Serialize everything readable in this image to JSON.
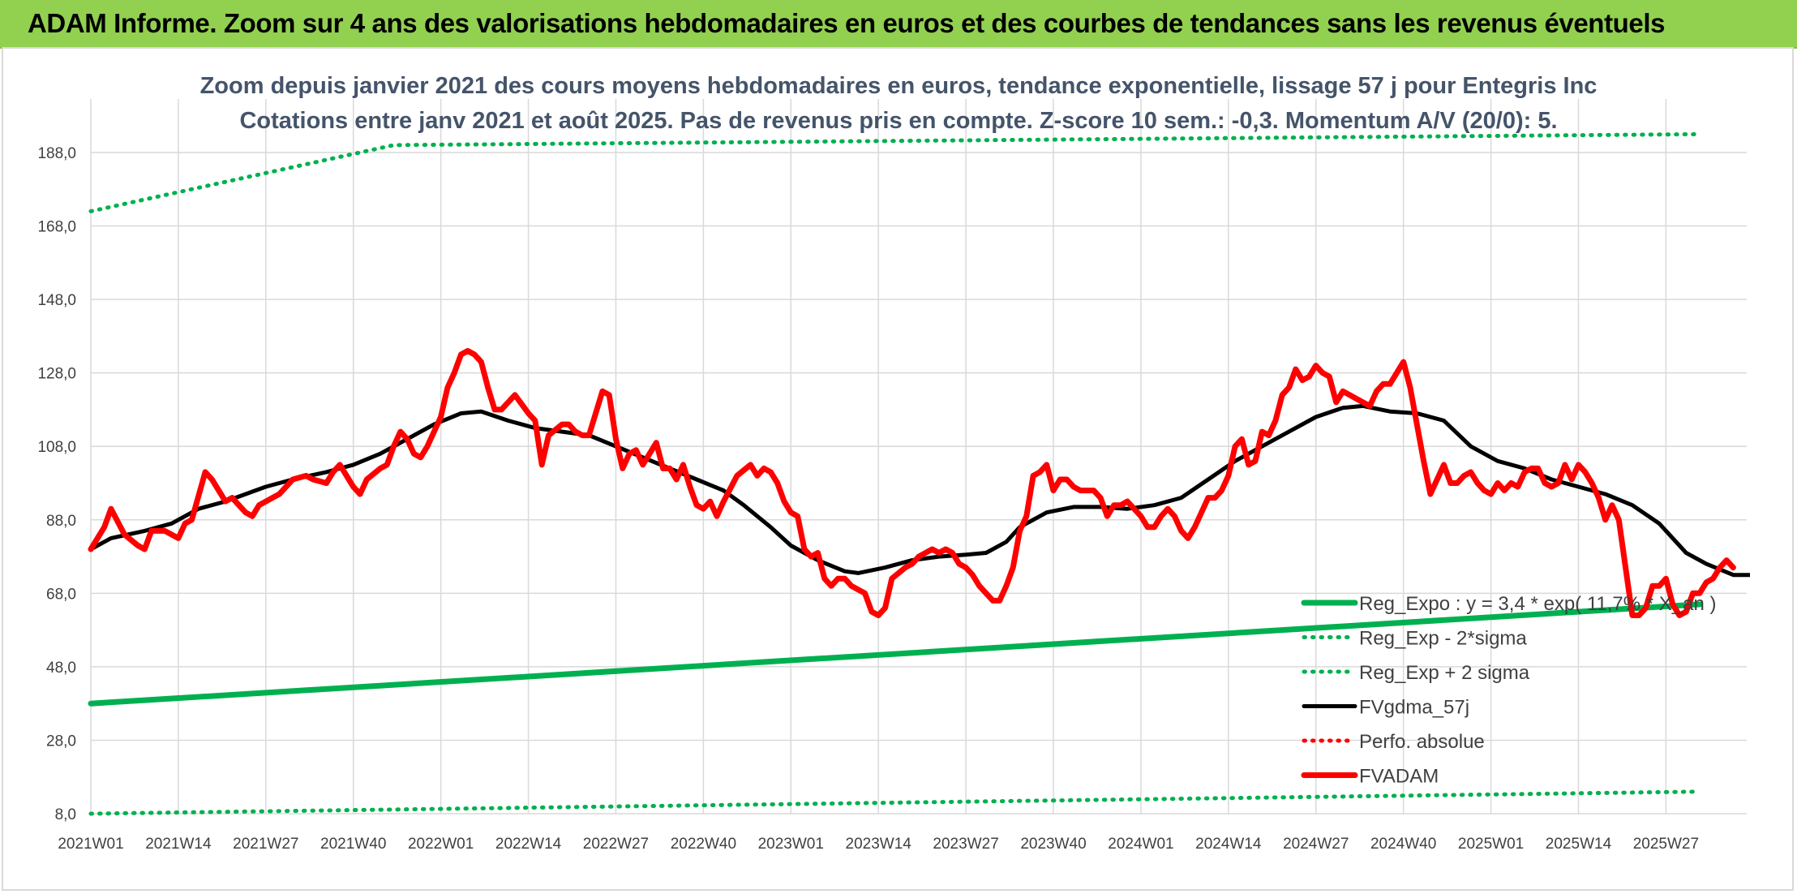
{
  "header": {
    "title": "ADAM Informe. Zoom sur 4 ans des valorisations hebdomadaires en euros et des courbes de tendances sans les revenus éventuels"
  },
  "chart": {
    "subtitle_line1": "Zoom depuis janvier 2021 des cours moyens hebdomadaires en euros, tendance exponentielle, lissage 57 j pour Entegris Inc",
    "subtitle_line2": "Cotations entre janv 2021 et août 2025. Pas de revenus pris en compte. Z-score 10 sem.: -0,3. Momentum A/V (20/0): 5."
  },
  "colors": {
    "reg_expo": "#00b050",
    "fvgdma": "#000000",
    "fvadam": "#ff0000",
    "perfo": "#ff0000",
    "grid": "#d9d9d9",
    "subtitle": "#44546a",
    "banner": "#92d050"
  },
  "chart_data": {
    "type": "line",
    "ylim": [
      8,
      188
    ],
    "yticks": [
      "188,0",
      "168,0",
      "148,0",
      "128,0",
      "108,0",
      "88,0",
      "68,0",
      "48,0",
      "28,0",
      "8,0"
    ],
    "xticks": [
      "2021W01",
      "2021W14",
      "2021W27",
      "2021W40",
      "2022W01",
      "2022W14",
      "2022W27",
      "2022W40",
      "2023W01",
      "2023W14",
      "2023W27",
      "2023W40",
      "2024W01",
      "2024W14",
      "2024W27",
      "2024W40",
      "2025W01",
      "2025W14",
      "2025W27"
    ],
    "grid": true,
    "legend_position": "bottom-right",
    "series": [
      {
        "name": "Reg_Expo : y = 3,4 * exp( 11,7% * X_an )",
        "style": "solid-thick",
        "color": "#00b050",
        "points": [
          [
            0,
            38.0
          ],
          [
            239,
            65.0
          ]
        ]
      },
      {
        "name": "Reg_Exp - 2*sigma",
        "style": "dotted",
        "color": "#00b050",
        "points": [
          [
            0,
            8.0
          ],
          [
            239,
            14.0
          ]
        ]
      },
      {
        "name": "Reg_Exp + 2 sigma",
        "style": "dotted",
        "color": "#00b050",
        "points": [
          [
            0,
            172.0
          ],
          [
            45,
            190.0
          ],
          [
            239,
            193.0
          ]
        ]
      },
      {
        "name": "FVgdma_57j",
        "style": "solid",
        "color": "#000000",
        "points": [
          [
            0,
            80
          ],
          [
            3,
            83
          ],
          [
            8,
            85
          ],
          [
            12,
            87
          ],
          [
            16,
            91
          ],
          [
            20,
            93
          ],
          [
            26,
            97
          ],
          [
            30,
            99
          ],
          [
            35,
            101
          ],
          [
            39,
            103
          ],
          [
            43,
            106
          ],
          [
            47,
            110
          ],
          [
            51,
            114
          ],
          [
            55,
            117
          ],
          [
            58,
            117.5
          ],
          [
            62,
            115
          ],
          [
            66,
            113
          ],
          [
            70,
            112
          ],
          [
            74,
            111
          ],
          [
            78,
            108
          ],
          [
            82,
            105
          ],
          [
            86,
            102
          ],
          [
            90,
            99
          ],
          [
            94,
            96
          ],
          [
            97,
            92
          ],
          [
            101,
            86
          ],
          [
            104,
            81
          ],
          [
            108,
            77
          ],
          [
            112,
            74
          ],
          [
            114,
            73.5
          ],
          [
            118,
            75
          ],
          [
            122,
            77
          ],
          [
            126,
            78
          ],
          [
            130,
            78.5
          ],
          [
            133,
            79
          ],
          [
            136,
            82
          ],
          [
            138,
            86
          ],
          [
            142,
            90
          ],
          [
            146,
            91.5
          ],
          [
            150,
            91.5
          ],
          [
            154,
            91
          ],
          [
            158,
            92
          ],
          [
            162,
            94
          ],
          [
            166,
            99
          ],
          [
            170,
            104
          ],
          [
            174,
            108
          ],
          [
            178,
            112
          ],
          [
            182,
            116
          ],
          [
            186,
            118.5
          ],
          [
            189,
            119
          ],
          [
            193,
            117.5
          ],
          [
            197,
            117
          ],
          [
            201,
            115
          ],
          [
            205,
            108
          ],
          [
            209,
            104
          ],
          [
            213,
            102
          ],
          [
            217,
            99
          ],
          [
            221,
            97
          ],
          [
            225,
            95
          ],
          [
            229,
            92
          ],
          [
            233,
            87
          ],
          [
            237,
            79
          ],
          [
            240,
            76
          ],
          [
            244,
            73
          ],
          [
            248,
            73
          ],
          [
            252,
            74
          ],
          [
            255,
            75
          ]
        ]
      },
      {
        "name": "Perfo. absolue",
        "style": "dotted",
        "color": "#ff0000",
        "points": []
      },
      {
        "name": "FVADAM",
        "style": "solid-thick",
        "color": "#ff0000",
        "points": [
          [
            0,
            80
          ],
          [
            2,
            86
          ],
          [
            3,
            91
          ],
          [
            5,
            84
          ],
          [
            7,
            81
          ],
          [
            8,
            80
          ],
          [
            9,
            85
          ],
          [
            11,
            85
          ],
          [
            13,
            83
          ],
          [
            14,
            87
          ],
          [
            15,
            88
          ],
          [
            17,
            101
          ],
          [
            18,
            99
          ],
          [
            20,
            93
          ],
          [
            21,
            94
          ],
          [
            23,
            90
          ],
          [
            24,
            89
          ],
          [
            25,
            92
          ],
          [
            27,
            94
          ],
          [
            28,
            95
          ],
          [
            30,
            99
          ],
          [
            32,
            100
          ],
          [
            33,
            99
          ],
          [
            35,
            98
          ],
          [
            36,
            101
          ],
          [
            37,
            103
          ],
          [
            39,
            97
          ],
          [
            40,
            95
          ],
          [
            41,
            99
          ],
          [
            43,
            102
          ],
          [
            44,
            103
          ],
          [
            45,
            108
          ],
          [
            46,
            112
          ],
          [
            47,
            110
          ],
          [
            48,
            106
          ],
          [
            49,
            105
          ],
          [
            50,
            108
          ],
          [
            52,
            116
          ],
          [
            53,
            124
          ],
          [
            54,
            128
          ],
          [
            55,
            133
          ],
          [
            56,
            134
          ],
          [
            57,
            133
          ],
          [
            58,
            131
          ],
          [
            59,
            124
          ],
          [
            60,
            118
          ],
          [
            61,
            118
          ],
          [
            62,
            120
          ],
          [
            63,
            122
          ],
          [
            65,
            117
          ],
          [
            66,
            115
          ],
          [
            67,
            103
          ],
          [
            68,
            111
          ],
          [
            70,
            114
          ],
          [
            71,
            114
          ],
          [
            72,
            112
          ],
          [
            73,
            111
          ],
          [
            74,
            111
          ],
          [
            75,
            117
          ],
          [
            76,
            123
          ],
          [
            77,
            122
          ],
          [
            78,
            110
          ],
          [
            79,
            102
          ],
          [
            80,
            106
          ],
          [
            81,
            107
          ],
          [
            82,
            103
          ],
          [
            84,
            109
          ],
          [
            85,
            102
          ],
          [
            86,
            102
          ],
          [
            87,
            99
          ],
          [
            88,
            103
          ],
          [
            89,
            97
          ],
          [
            90,
            92
          ],
          [
            91,
            91
          ],
          [
            92,
            93
          ],
          [
            93,
            89
          ],
          [
            94,
            93
          ],
          [
            96,
            100
          ],
          [
            98,
            103
          ],
          [
            99,
            100
          ],
          [
            100,
            102
          ],
          [
            101,
            101
          ],
          [
            102,
            98
          ],
          [
            103,
            93
          ],
          [
            104,
            90
          ],
          [
            105,
            89
          ],
          [
            106,
            80
          ],
          [
            107,
            78
          ],
          [
            108,
            79
          ],
          [
            109,
            72
          ],
          [
            110,
            70
          ],
          [
            111,
            72
          ],
          [
            112,
            72
          ],
          [
            113,
            70
          ],
          [
            114,
            69
          ],
          [
            115,
            68
          ],
          [
            116,
            63
          ],
          [
            117,
            62
          ],
          [
            118,
            64
          ],
          [
            119,
            72
          ],
          [
            121,
            75
          ],
          [
            122,
            76
          ],
          [
            123,
            78
          ],
          [
            124,
            79
          ],
          [
            125,
            80
          ],
          [
            126,
            79
          ],
          [
            127,
            80
          ],
          [
            128,
            79
          ],
          [
            129,
            76
          ],
          [
            130,
            75
          ],
          [
            131,
            73
          ],
          [
            132,
            70
          ],
          [
            133,
            68
          ],
          [
            134,
            66
          ],
          [
            135,
            66
          ],
          [
            136,
            70
          ],
          [
            137,
            75
          ],
          [
            138,
            85
          ],
          [
            139,
            89
          ],
          [
            140,
            100
          ],
          [
            141,
            101
          ],
          [
            142,
            103
          ],
          [
            143,
            96
          ],
          [
            144,
            99
          ],
          [
            145,
            99
          ],
          [
            146,
            97
          ],
          [
            147,
            96
          ],
          [
            148,
            96
          ],
          [
            149,
            96
          ],
          [
            150,
            94
          ],
          [
            151,
            89
          ],
          [
            152,
            92
          ],
          [
            153,
            92
          ],
          [
            154,
            93
          ],
          [
            155,
            91
          ],
          [
            156,
            89
          ],
          [
            157,
            86
          ],
          [
            158,
            86
          ],
          [
            159,
            89
          ],
          [
            160,
            91
          ],
          [
            161,
            89
          ],
          [
            162,
            85
          ],
          [
            163,
            83
          ],
          [
            164,
            86
          ],
          [
            165,
            90
          ],
          [
            166,
            94
          ],
          [
            167,
            94
          ],
          [
            168,
            96
          ],
          [
            169,
            100
          ],
          [
            170,
            108
          ],
          [
            171,
            110
          ],
          [
            172,
            103
          ],
          [
            173,
            104
          ],
          [
            174,
            112
          ],
          [
            175,
            111
          ],
          [
            176,
            115
          ],
          [
            177,
            122
          ],
          [
            178,
            124
          ],
          [
            179,
            129
          ],
          [
            180,
            126
          ],
          [
            181,
            127
          ],
          [
            182,
            130
          ],
          [
            183,
            128
          ],
          [
            184,
            127
          ],
          [
            185,
            120
          ],
          [
            186,
            123
          ],
          [
            187,
            122
          ],
          [
            188,
            121
          ],
          [
            189,
            120
          ],
          [
            190,
            119
          ],
          [
            191,
            123
          ],
          [
            192,
            125
          ],
          [
            193,
            125
          ],
          [
            194,
            128
          ],
          [
            195,
            131
          ],
          [
            196,
            124
          ],
          [
            197,
            114
          ],
          [
            198,
            104
          ],
          [
            199,
            95
          ],
          [
            200,
            99
          ],
          [
            201,
            103
          ],
          [
            202,
            98
          ],
          [
            203,
            98
          ],
          [
            204,
            100
          ],
          [
            205,
            101
          ],
          [
            206,
            98
          ],
          [
            207,
            96
          ],
          [
            208,
            95
          ],
          [
            209,
            98
          ],
          [
            210,
            96
          ],
          [
            211,
            98
          ],
          [
            212,
            97
          ],
          [
            213,
            101
          ],
          [
            214,
            102
          ],
          [
            215,
            102
          ],
          [
            216,
            98
          ],
          [
            217,
            97
          ],
          [
            218,
            98
          ],
          [
            219,
            103
          ],
          [
            220,
            99
          ],
          [
            221,
            103
          ],
          [
            222,
            101
          ],
          [
            223,
            98
          ],
          [
            224,
            94
          ],
          [
            225,
            88
          ],
          [
            226,
            92
          ],
          [
            227,
            88
          ],
          [
            228,
            75
          ],
          [
            229,
            62
          ],
          [
            230,
            62
          ],
          [
            231,
            64
          ],
          [
            232,
            70
          ],
          [
            233,
            70
          ],
          [
            234,
            72
          ],
          [
            235,
            65
          ],
          [
            236,
            62
          ],
          [
            237,
            63
          ],
          [
            238,
            68
          ],
          [
            239,
            68
          ],
          [
            240,
            71
          ],
          [
            241,
            72
          ],
          [
            242,
            75
          ],
          [
            243,
            77
          ],
          [
            244,
            75
          ]
        ]
      }
    ]
  }
}
